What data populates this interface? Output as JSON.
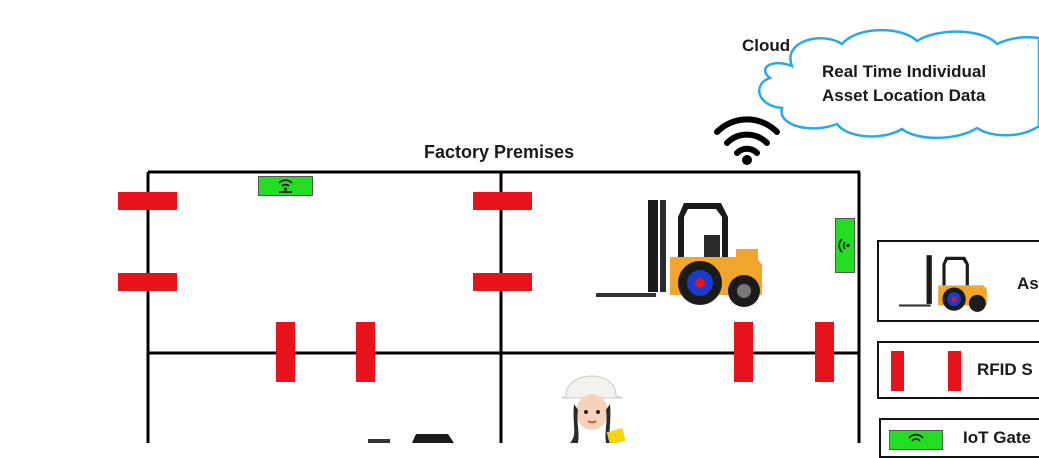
{
  "cloud": {
    "label": "Cloud",
    "text_line1": "Real Time Individual",
    "text_line2": "Asset Location Data"
  },
  "premises": {
    "title": "Factory Premises"
  },
  "legend": {
    "asset_label": "As",
    "rfid_label": "RFID S",
    "gateway_label": "IoT Gate"
  },
  "colors": {
    "rfid": "#e8121a",
    "gateway": "#22dd22",
    "cloud_stroke": "#2aa8e6",
    "forklift": "#f2a52c",
    "tag_blue": "#1a3ccc",
    "tag_red": "#e8121a"
  },
  "icons": [
    "wifi-icon",
    "cloud-icon",
    "forklift-icon",
    "worker-icon",
    "rfid-sensor-icon",
    "iot-gateway-icon"
  ]
}
